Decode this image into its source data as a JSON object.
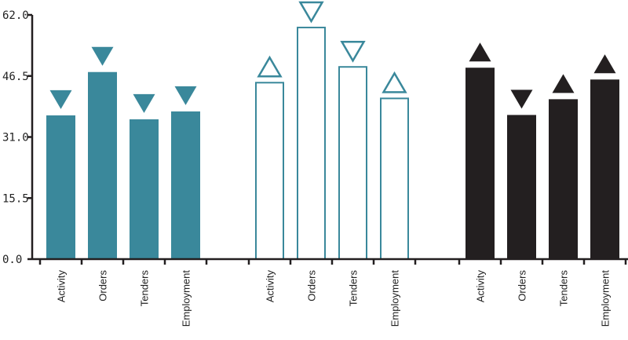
{
  "chart_data": {
    "type": "bar",
    "title": "",
    "xlabel": "",
    "ylabel": "",
    "ylim": [
      0,
      62
    ],
    "yticks": [
      "0.0",
      "15.5",
      "31.0",
      "46.5",
      "62.0"
    ],
    "grid": false,
    "legend": "none",
    "groups": [
      {
        "style": "filled",
        "color": "#3a889b",
        "categories": [
          "Activity",
          "Orders",
          "Tenders",
          "Employment"
        ],
        "values": [
          36.5,
          47.5,
          35.5,
          37.5
        ],
        "markers": [
          "down",
          "down",
          "down",
          "down"
        ]
      },
      {
        "style": "outline",
        "color": "#3a889b",
        "categories": [
          "Activity",
          "Orders",
          "Tenders",
          "Employment"
        ],
        "values": [
          44.8,
          58.8,
          48.8,
          40.8
        ],
        "markers": [
          "up",
          "down",
          "down",
          "up"
        ]
      },
      {
        "style": "filled",
        "color": "#231f20",
        "categories": [
          "Activity",
          "Orders",
          "Tenders",
          "Employment"
        ],
        "values": [
          48.6,
          36.6,
          40.6,
          45.6
        ],
        "markers": [
          "up",
          "down",
          "up",
          "up"
        ]
      }
    ]
  }
}
